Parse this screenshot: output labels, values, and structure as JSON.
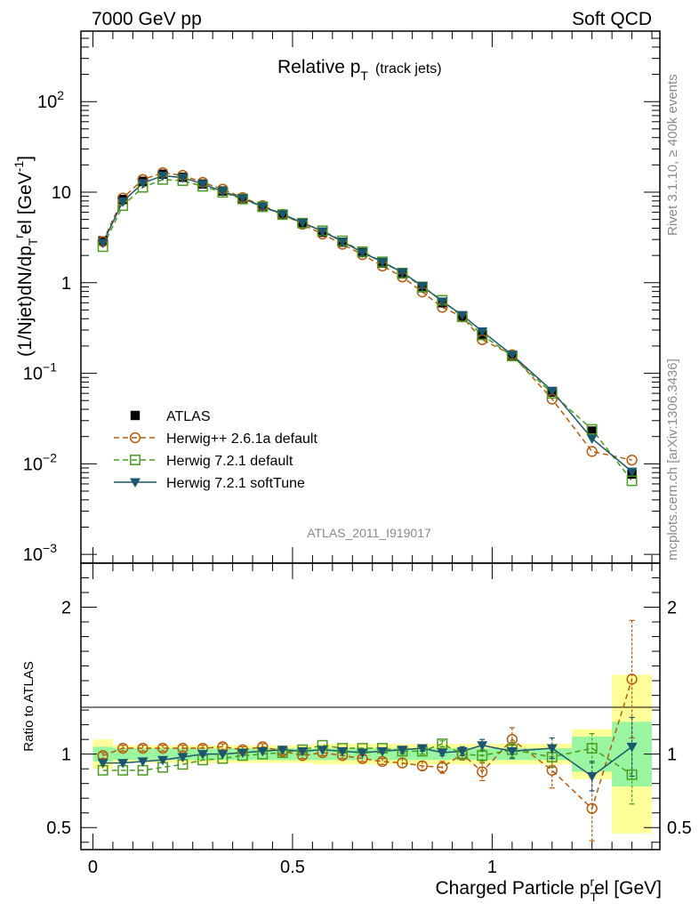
{
  "header": {
    "left": "7000 GeV pp",
    "right": "Soft QCD"
  },
  "side": {
    "rivet": "Rivet 3.1.10, ≥ 400k events",
    "mcplots": "mcplots.cern.ch [arXiv:1306.3436]"
  },
  "chart_data": {
    "type": "line",
    "title": "Relative p",
    "title_sub": "T",
    "title_note": "(track jets)",
    "analysis": "ATLAS_2011_I919017",
    "xlabel": "Charged Particle p",
    "xlabel_sub": "T",
    "xlabel_sup": "r",
    "xlabel_tail": "el [GeV]",
    "ylabel": "(1/Njet)dN/dp_T^rel [GeV^-1]",
    "ratio_ylabel": "Ratio to ATLAS",
    "xlim": [
      -0.03,
      1.42
    ],
    "ylim": [
      0.0008,
      600
    ],
    "yscale": "log",
    "ratio_ylim": [
      0.35,
      2.3
    ],
    "x_ticks": [
      {
        "v": 0,
        "label": "0"
      },
      {
        "v": 0.5,
        "label": "0.5"
      },
      {
        "v": 1,
        "label": "1"
      }
    ],
    "y_ticks": [
      {
        "v": 0.001,
        "base": "10",
        "exp": "−3"
      },
      {
        "v": 0.01,
        "base": "10",
        "exp": "−2"
      },
      {
        "v": 0.1,
        "base": "10",
        "exp": "−1"
      },
      {
        "v": 1,
        "base": "1",
        "exp": ""
      },
      {
        "v": 10,
        "base": "10",
        "exp": ""
      },
      {
        "v": 100,
        "base": "10",
        "exp": "2"
      }
    ],
    "ratio_ticks": [
      {
        "v": 0.5,
        "label": "0.5"
      },
      {
        "v": 1,
        "label": "1"
      },
      {
        "v": 2,
        "label": "2"
      }
    ],
    "x": [
      0.025,
      0.075,
      0.125,
      0.175,
      0.225,
      0.275,
      0.325,
      0.375,
      0.425,
      0.475,
      0.525,
      0.575,
      0.625,
      0.675,
      0.725,
      0.775,
      0.825,
      0.875,
      0.925,
      0.975,
      1.05,
      1.15,
      1.25,
      1.35
    ],
    "bin_edges": [
      0,
      0.05,
      0.1,
      0.15,
      0.2,
      0.25,
      0.3,
      0.35,
      0.4,
      0.45,
      0.5,
      0.55,
      0.6,
      0.65,
      0.7,
      0.75,
      0.8,
      0.85,
      0.9,
      0.95,
      1.0,
      1.1,
      1.2,
      1.3,
      1.4
    ],
    "band_inner": [
      0.05,
      0.04,
      0.04,
      0.04,
      0.04,
      0.04,
      0.04,
      0.04,
      0.04,
      0.04,
      0.04,
      0.04,
      0.04,
      0.04,
      0.04,
      0.04,
      0.04,
      0.04,
      0.04,
      0.04,
      0.04,
      0.04,
      0.12,
      0.22
    ],
    "band_outer": [
      0.1,
      0.06,
      0.06,
      0.06,
      0.06,
      0.06,
      0.06,
      0.06,
      0.06,
      0.06,
      0.06,
      0.07,
      0.07,
      0.07,
      0.07,
      0.07,
      0.07,
      0.07,
      0.07,
      0.07,
      0.07,
      0.07,
      0.17,
      0.54
    ],
    "series": [
      {
        "name": "ATLAS",
        "style": "data",
        "color": "#000000",
        "values": [
          2.9,
          8.3,
          13.2,
          15.8,
          14.6,
          12.3,
          10.3,
          8.5,
          6.9,
          5.6,
          4.5,
          3.6,
          2.8,
          2.15,
          1.65,
          1.25,
          0.88,
          0.6,
          0.42,
          0.27,
          0.155,
          0.062,
          0.023,
          0.0077
        ]
      },
      {
        "name": "Herwig++ 2.6.1a default",
        "style": "circle",
        "color": "#b55a0b",
        "values": [
          2.85,
          8.6,
          13.8,
          16.4,
          15.3,
          12.8,
          10.8,
          8.7,
          7.1,
          5.7,
          4.42,
          3.45,
          2.66,
          2.04,
          1.53,
          1.16,
          0.79,
          0.535,
          0.42,
          0.235,
          0.16,
          0.052,
          0.0137,
          0.011
        ],
        "ratio": [
          0.99,
          1.04,
          1.04,
          1.04,
          1.04,
          1.04,
          1.05,
          1.03,
          1.05,
          1.02,
          0.99,
          1.01,
          0.99,
          0.97,
          0.95,
          0.94,
          0.92,
          0.91,
          1.0,
          0.88,
          1.1,
          0.89,
          0.63,
          1.51
        ],
        "ratio_err": [
          0.02,
          0.02,
          0.02,
          0.02,
          0.02,
          0.02,
          0.02,
          0.02,
          0.02,
          0.02,
          0.02,
          0.02,
          0.02,
          0.02,
          0.02,
          0.03,
          0.03,
          0.04,
          0.04,
          0.06,
          0.08,
          0.12,
          0.22,
          0.4
        ]
      },
      {
        "name": "Herwig 7.2.1 default",
        "style": "square",
        "color": "#4a9a1e",
        "values": [
          2.5,
          7.1,
          11.3,
          13.8,
          13.4,
          11.6,
          9.95,
          8.4,
          6.9,
          5.65,
          4.55,
          3.75,
          2.9,
          2.2,
          1.7,
          1.28,
          0.9,
          0.64,
          0.42,
          0.265,
          0.155,
          0.06,
          0.024,
          0.0065
        ],
        "ratio": [
          0.89,
          0.89,
          0.89,
          0.91,
          0.93,
          0.96,
          0.97,
          0.99,
          1.0,
          1.01,
          1.03,
          1.06,
          1.04,
          1.04,
          1.04,
          1.02,
          1.02,
          1.07,
          1.0,
          0.99,
          1.03,
          0.98,
          1.04,
          0.86
        ],
        "ratio_err": [
          0.01,
          0.01,
          0.01,
          0.01,
          0.01,
          0.01,
          0.01,
          0.01,
          0.01,
          0.01,
          0.01,
          0.01,
          0.01,
          0.01,
          0.01,
          0.02,
          0.02,
          0.02,
          0.03,
          0.04,
          0.05,
          0.07,
          0.1,
          0.2
        ]
      },
      {
        "name": "Herwig 7.2.1 softTune",
        "style": "triangle",
        "color": "#1c5570",
        "values": [
          2.75,
          7.9,
          12.6,
          15.2,
          14.5,
          12.3,
          10.2,
          8.55,
          6.95,
          5.7,
          4.6,
          3.7,
          2.85,
          2.15,
          1.7,
          1.3,
          0.92,
          0.62,
          0.44,
          0.29,
          0.16,
          0.064,
          0.019,
          0.0082
        ],
        "ratio": [
          0.94,
          0.94,
          0.95,
          0.96,
          0.98,
          1.0,
          1.0,
          1.01,
          1.02,
          1.03,
          1.02,
          1.03,
          1.02,
          1.01,
          1.02,
          1.03,
          1.04,
          1.01,
          1.02,
          1.06,
          1.02,
          1.04,
          0.85,
          1.05
        ],
        "ratio_err": [
          0.01,
          0.01,
          0.01,
          0.01,
          0.01,
          0.01,
          0.01,
          0.01,
          0.01,
          0.01,
          0.01,
          0.01,
          0.01,
          0.01,
          0.01,
          0.02,
          0.02,
          0.02,
          0.03,
          0.04,
          0.05,
          0.07,
          0.1,
          0.2
        ]
      }
    ]
  }
}
